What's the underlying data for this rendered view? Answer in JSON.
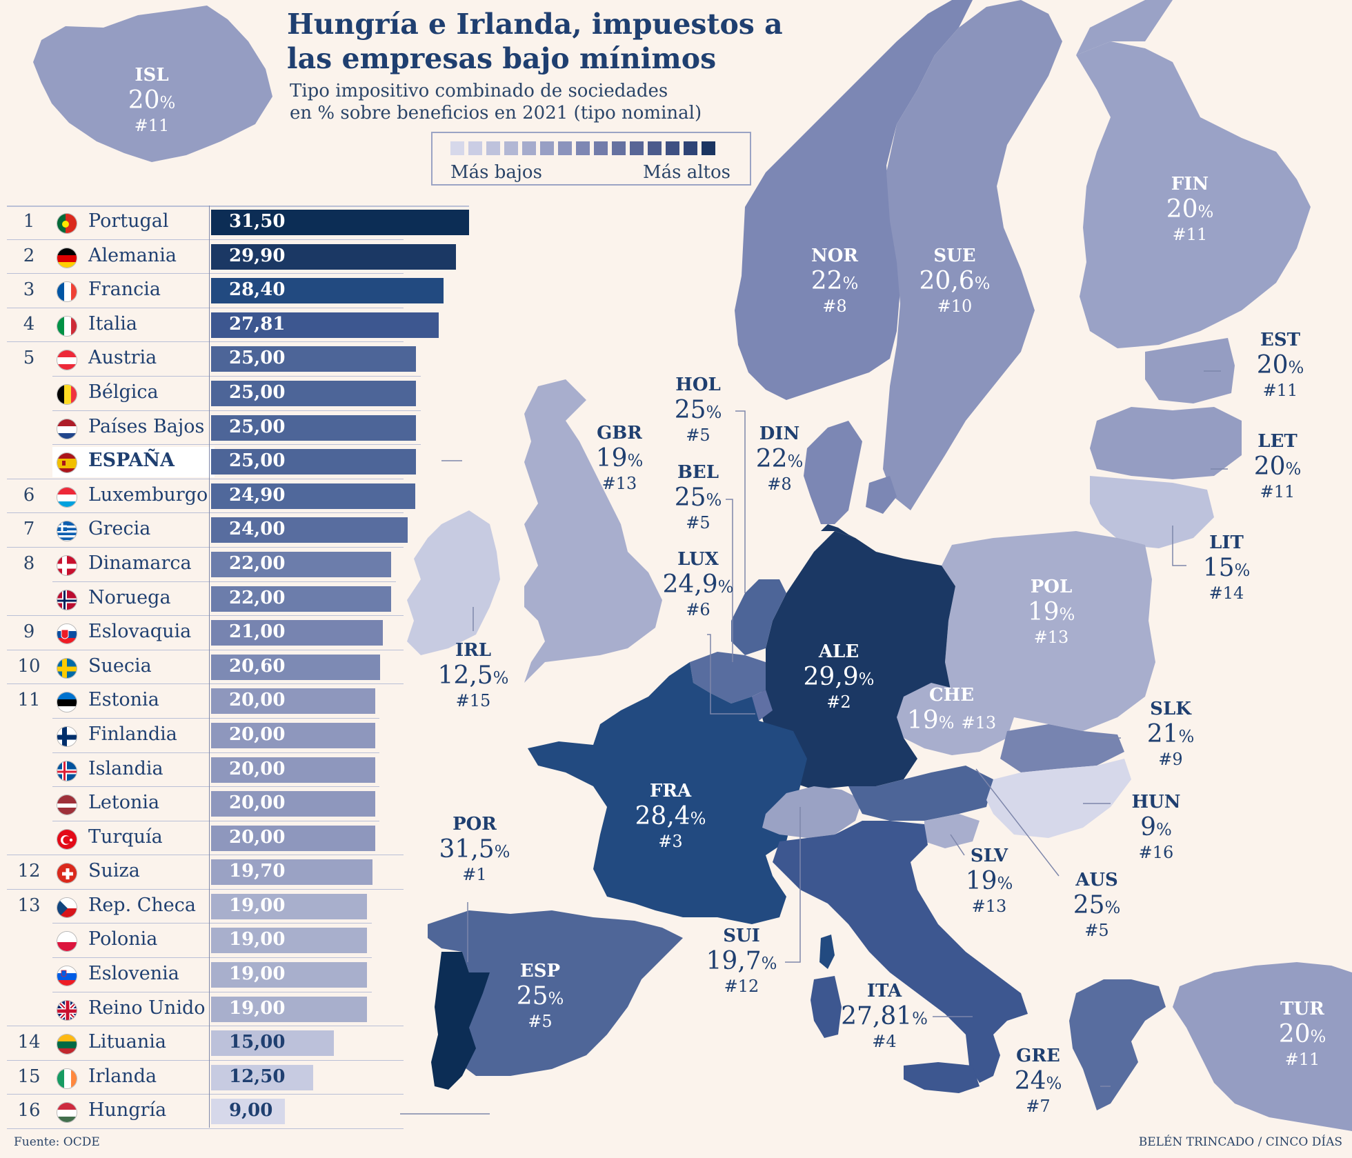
{
  "header": {
    "title": "Hungría e Irlanda, impuestos a las empresas bajo mínimos",
    "subtitle_line1": "Tipo impositivo combinado de sociedades",
    "subtitle_line2": "en % sobre beneficios en 2021 (tipo nominal)"
  },
  "legend": {
    "low_label": "Más bajos",
    "high_label": "Más altos",
    "swatches": [
      "#d6d8ea",
      "#cacde4",
      "#bec2dc",
      "#b2b7d4",
      "#a5abcc",
      "#989fc4",
      "#8b93bc",
      "#7e87b3",
      "#727caa",
      "#6571a0",
      "#586696",
      "#4b5b8c",
      "#3e5082",
      "#2e4476",
      "#1a3561"
    ]
  },
  "ranking": [
    {
      "rank": "1",
      "country": "Portugal",
      "value": "31,50",
      "num": 31.5,
      "flag": "portugal",
      "color": "#0c2d55"
    },
    {
      "rank": "2",
      "country": "Alemania",
      "value": "29,90",
      "num": 29.9,
      "flag": "germany",
      "color": "#1b3864"
    },
    {
      "rank": "3",
      "country": "Francia",
      "value": "28,40",
      "num": 28.4,
      "flag": "france",
      "color": "#224a80"
    },
    {
      "rank": "4",
      "country": "Italia",
      "value": "27,81",
      "num": 27.81,
      "flag": "italy",
      "color": "#3d5790"
    },
    {
      "rank": "5",
      "country": "Austria",
      "value": "25,00",
      "num": 25.0,
      "flag": "austria",
      "color": "#4d6598"
    },
    {
      "rank": "",
      "country": "Bélgica",
      "value": "25,00",
      "num": 25.0,
      "flag": "belgium",
      "color": "#4d6598"
    },
    {
      "rank": "",
      "country": "Países Bajos",
      "value": "25,00",
      "num": 25.0,
      "flag": "netherlands",
      "color": "#4d6598"
    },
    {
      "rank": "",
      "country": "ESPAÑA",
      "value": "25,00",
      "num": 25.0,
      "flag": "spain",
      "color": "#4d6598",
      "highlight": true
    },
    {
      "rank": "6",
      "country": "Luxemburgo",
      "value": "24,90",
      "num": 24.9,
      "flag": "luxembourg",
      "color": "#50689b"
    },
    {
      "rank": "7",
      "country": "Grecia",
      "value": "24,00",
      "num": 24.0,
      "flag": "greece",
      "color": "#586d9f"
    },
    {
      "rank": "8",
      "country": "Dinamarca",
      "value": "22,00",
      "num": 22.0,
      "flag": "denmark",
      "color": "#6c7dab"
    },
    {
      "rank": "",
      "country": "Noruega",
      "value": "22,00",
      "num": 22.0,
      "flag": "norway",
      "color": "#6c7dab"
    },
    {
      "rank": "9",
      "country": "Eslovaquia",
      "value": "21,00",
      "num": 21.0,
      "flag": "slovakia",
      "color": "#7784b0"
    },
    {
      "rank": "10",
      "country": "Suecia",
      "value": "20,60",
      "num": 20.6,
      "flag": "sweden",
      "color": "#7d8ab4"
    },
    {
      "rank": "11",
      "country": "Estonia",
      "value": "20,00",
      "num": 20.0,
      "flag": "estonia",
      "color": "#8e97bd"
    },
    {
      "rank": "",
      "country": "Finlandia",
      "value": "20,00",
      "num": 20.0,
      "flag": "finland",
      "color": "#8e97bd"
    },
    {
      "rank": "",
      "country": "Islandia",
      "value": "20,00",
      "num": 20.0,
      "flag": "iceland",
      "color": "#8e97bd"
    },
    {
      "rank": "",
      "country": "Letonia",
      "value": "20,00",
      "num": 20.0,
      "flag": "latvia",
      "color": "#8e97bd"
    },
    {
      "rank": "",
      "country": "Turquía",
      "value": "20,00",
      "num": 20.0,
      "flag": "turkey",
      "color": "#8e97bd"
    },
    {
      "rank": "12",
      "country": "Suiza",
      "value": "19,70",
      "num": 19.7,
      "flag": "switzerland",
      "color": "#9aa2c4"
    },
    {
      "rank": "13",
      "country": "Rep. Checa",
      "value": "19,00",
      "num": 19.0,
      "flag": "czech",
      "color": "#a8afcc"
    },
    {
      "rank": "",
      "country": "Polonia",
      "value": "19,00",
      "num": 19.0,
      "flag": "poland",
      "color": "#a8afcc"
    },
    {
      "rank": "",
      "country": "Eslovenia",
      "value": "19,00",
      "num": 19.0,
      "flag": "slovenia",
      "color": "#a8afcc"
    },
    {
      "rank": "",
      "country": "Reino Unido",
      "value": "19,00",
      "num": 19.0,
      "flag": "uk",
      "color": "#a8afcc"
    },
    {
      "rank": "14",
      "country": "Lituania",
      "value": "15,00",
      "num": 15.0,
      "flag": "lithuania",
      "color": "#bcc1da",
      "dark": true
    },
    {
      "rank": "15",
      "country": "Irlanda",
      "value": "12,50",
      "num": 12.5,
      "flag": "ireland",
      "color": "#c7cbe1",
      "dark": true
    },
    {
      "rank": "16",
      "country": "Hungría",
      "value": "9,00",
      "num": 9.0,
      "flag": "hungary",
      "color": "#d6d8ea",
      "dark": true
    }
  ],
  "map_labels": [
    {
      "code": "ISL",
      "pct": "20",
      "rank": "#11"
    },
    {
      "code": "FIN",
      "pct": "20",
      "rank": "#11"
    },
    {
      "code": "NOR",
      "pct": "22",
      "rank": "#8"
    },
    {
      "code": "SUE",
      "pct": "20,6",
      "rank": "#10"
    },
    {
      "code": "EST",
      "pct": "20",
      "rank": "#11",
      "dark": true
    },
    {
      "code": "LET",
      "pct": "20",
      "rank": "#11",
      "dark": true
    },
    {
      "code": "LIT",
      "pct": "15",
      "rank": "#14",
      "dark": true
    },
    {
      "code": "HOL",
      "pct": "25",
      "rank": "#5",
      "dark": true
    },
    {
      "code": "DIN",
      "pct": "22",
      "rank": "#8",
      "dark": true
    },
    {
      "code": "GBR",
      "pct": "19",
      "rank": "#13",
      "dark": true
    },
    {
      "code": "BEL",
      "pct": "25",
      "rank": "#5",
      "dark": true
    },
    {
      "code": "LUX",
      "pct": "24,9",
      "rank": "#6",
      "dark": true
    },
    {
      "code": "POL",
      "pct": "19",
      "rank": "#13"
    },
    {
      "code": "ALE",
      "pct": "29,9",
      "rank": "#2"
    },
    {
      "code": "IRL",
      "pct": "12,5",
      "rank": "#15",
      "dark": true
    },
    {
      "code": "CHE",
      "pct": "19",
      "rank": "#13",
      "inline": true
    },
    {
      "code": "SLK",
      "pct": "21",
      "rank": "#9",
      "dark": true
    },
    {
      "code": "FRA",
      "pct": "28,4",
      "rank": "#3"
    },
    {
      "code": "HUN",
      "pct": "9",
      "rank": "#16",
      "dark": true
    },
    {
      "code": "POR",
      "pct": "31,5",
      "rank": "#1",
      "dark": true
    },
    {
      "code": "SLV",
      "pct": "19",
      "rank": "#13",
      "dark": true
    },
    {
      "code": "AUS",
      "pct": "25",
      "rank": "#5",
      "dark": true
    },
    {
      "code": "SUI",
      "pct": "19,7",
      "rank": "#12",
      "dark": true
    },
    {
      "code": "ESP",
      "pct": "25",
      "rank": "#5"
    },
    {
      "code": "ITA",
      "pct": "27,81",
      "rank": "#4",
      "dark": true
    },
    {
      "code": "GRE",
      "pct": "24",
      "rank": "#7",
      "dark": true
    },
    {
      "code": "TUR",
      "pct": "20",
      "rank": "#11"
    }
  ],
  "footer": {
    "source": "Fuente: OCDE",
    "credit": "BELÉN TRINCADO / CINCO DÍAS"
  }
}
